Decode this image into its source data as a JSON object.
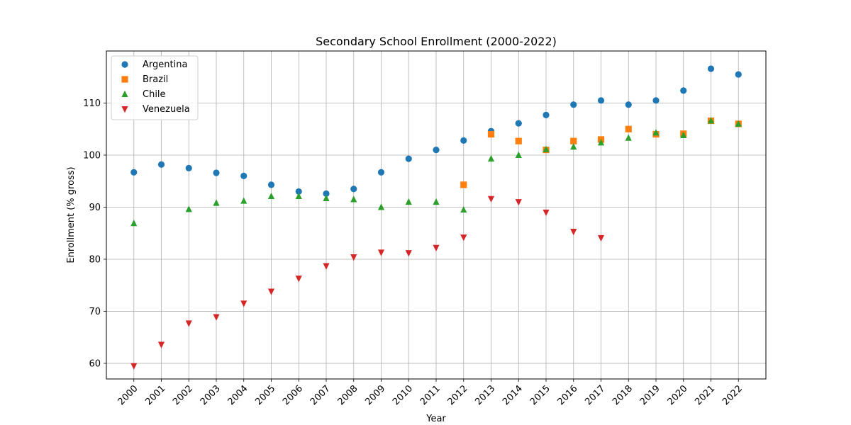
{
  "chart_data": {
    "type": "scatter",
    "title": "Secondary School Enrollment (2000-2022)",
    "xlabel": "Year",
    "ylabel": "Enrollment (% gross)",
    "ylim": [
      57,
      120
    ],
    "xlim": [
      1999.0,
      2023.0
    ],
    "x_ticks": [
      2000,
      2001,
      2002,
      2003,
      2004,
      2005,
      2006,
      2007,
      2008,
      2009,
      2010,
      2011,
      2012,
      2013,
      2014,
      2015,
      2016,
      2017,
      2018,
      2019,
      2020,
      2021,
      2022
    ],
    "x_tick_labels": [
      "2000",
      "2001",
      "2002",
      "2003",
      "2004",
      "2005",
      "2006",
      "2007",
      "2008",
      "2009",
      "2010",
      "2011",
      "2012",
      "2013",
      "2014",
      "2015",
      "2016",
      "2017",
      "2018",
      "2019",
      "2020",
      "2021",
      "2022"
    ],
    "y_ticks": [
      60,
      70,
      80,
      90,
      100,
      110
    ],
    "y_tick_labels": [
      "60",
      "70",
      "80",
      "90",
      "100",
      "110"
    ],
    "grid": true,
    "legend_position": "top-left",
    "series": [
      {
        "name": "Argentina",
        "color": "#1f77b4",
        "marker": "circle",
        "points": [
          [
            2000,
            96.7
          ],
          [
            2001,
            98.2
          ],
          [
            2002,
            97.5
          ],
          [
            2003,
            96.6
          ],
          [
            2004,
            96.0
          ],
          [
            2005,
            94.3
          ],
          [
            2006,
            93.0
          ],
          [
            2007,
            92.6
          ],
          [
            2008,
            93.5
          ],
          [
            2009,
            96.7
          ],
          [
            2010,
            99.3
          ],
          [
            2011,
            101.0
          ],
          [
            2012,
            102.8
          ],
          [
            2013,
            104.6
          ],
          [
            2014,
            106.1
          ],
          [
            2015,
            107.7
          ],
          [
            2016,
            109.7
          ],
          [
            2017,
            110.5
          ],
          [
            2018,
            109.7
          ],
          [
            2019,
            110.5
          ],
          [
            2020,
            112.4
          ],
          [
            2021,
            116.6
          ],
          [
            2022,
            115.5
          ]
        ]
      },
      {
        "name": "Brazil",
        "color": "#ff7f0e",
        "marker": "square",
        "points": [
          [
            2012,
            94.3
          ],
          [
            2013,
            104.0
          ],
          [
            2014,
            102.7
          ],
          [
            2015,
            101.0
          ],
          [
            2016,
            102.7
          ],
          [
            2017,
            103.0
          ],
          [
            2018,
            105.0
          ],
          [
            2019,
            104.0
          ],
          [
            2020,
            104.1
          ],
          [
            2021,
            106.6
          ],
          [
            2022,
            106.0
          ]
        ]
      },
      {
        "name": "Chile",
        "color": "#2ca02c",
        "marker": "triangle-up",
        "points": [
          [
            2000,
            86.9
          ],
          [
            2002,
            89.6
          ],
          [
            2003,
            90.8
          ],
          [
            2004,
            91.2
          ],
          [
            2005,
            92.1
          ],
          [
            2006,
            92.1
          ],
          [
            2007,
            91.7
          ],
          [
            2008,
            91.5
          ],
          [
            2009,
            90.0
          ],
          [
            2010,
            91.0
          ],
          [
            2011,
            91.0
          ],
          [
            2012,
            89.5
          ],
          [
            2013,
            99.3
          ],
          [
            2014,
            100.0
          ],
          [
            2015,
            101.1
          ],
          [
            2016,
            101.6
          ],
          [
            2017,
            102.4
          ],
          [
            2018,
            103.3
          ],
          [
            2019,
            104.3
          ],
          [
            2020,
            103.8
          ],
          [
            2021,
            106.6
          ],
          [
            2022,
            106.0
          ]
        ]
      },
      {
        "name": "Venezuela",
        "color": "#d62728",
        "marker": "triangle-down",
        "points": [
          [
            2000,
            59.5
          ],
          [
            2001,
            63.6
          ],
          [
            2002,
            67.7
          ],
          [
            2003,
            68.9
          ],
          [
            2004,
            71.5
          ],
          [
            2005,
            73.8
          ],
          [
            2006,
            76.3
          ],
          [
            2007,
            78.7
          ],
          [
            2008,
            80.4
          ],
          [
            2009,
            81.3
          ],
          [
            2010,
            81.2
          ],
          [
            2011,
            82.2
          ],
          [
            2012,
            84.2
          ],
          [
            2013,
            91.6
          ],
          [
            2014,
            91.0
          ],
          [
            2015,
            89.0
          ],
          [
            2016,
            85.3
          ],
          [
            2017,
            84.1
          ]
        ]
      }
    ]
  }
}
